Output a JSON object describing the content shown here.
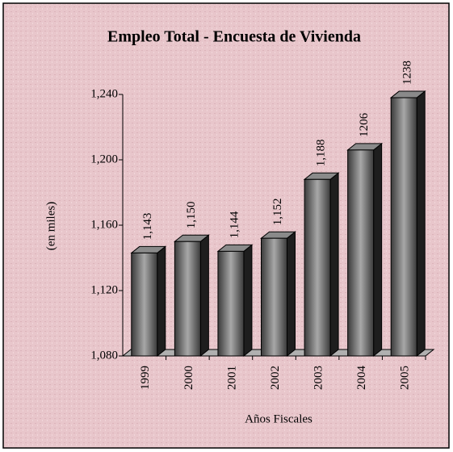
{
  "chart_data": {
    "type": "bar3d",
    "title": "Empleo Total - Encuesta de Vivienda",
    "y_label": "(en miles)",
    "x_label": "Años Fiscales",
    "categories": [
      "1999",
      "2000",
      "2001",
      "2002",
      "2003",
      "2004",
      "2005"
    ],
    "values": [
      1143,
      1150,
      1144,
      1152,
      1188,
      1206,
      1238
    ],
    "value_labels": [
      "1,143",
      "1,150",
      "1,144",
      "1,152",
      "1,188",
      "1206",
      "1238"
    ],
    "color": "#5a5a5a",
    "ylim": [
      1080,
      1240
    ],
    "yticks": [
      {
        "value": 1080,
        "label": "1,080"
      },
      {
        "value": 1120,
        "label": "1,120"
      },
      {
        "value": 1160,
        "label": "1,160"
      },
      {
        "value": 1200,
        "label": "1,200"
      },
      {
        "value": 1240,
        "label": "1,240"
      }
    ],
    "grid": false
  }
}
